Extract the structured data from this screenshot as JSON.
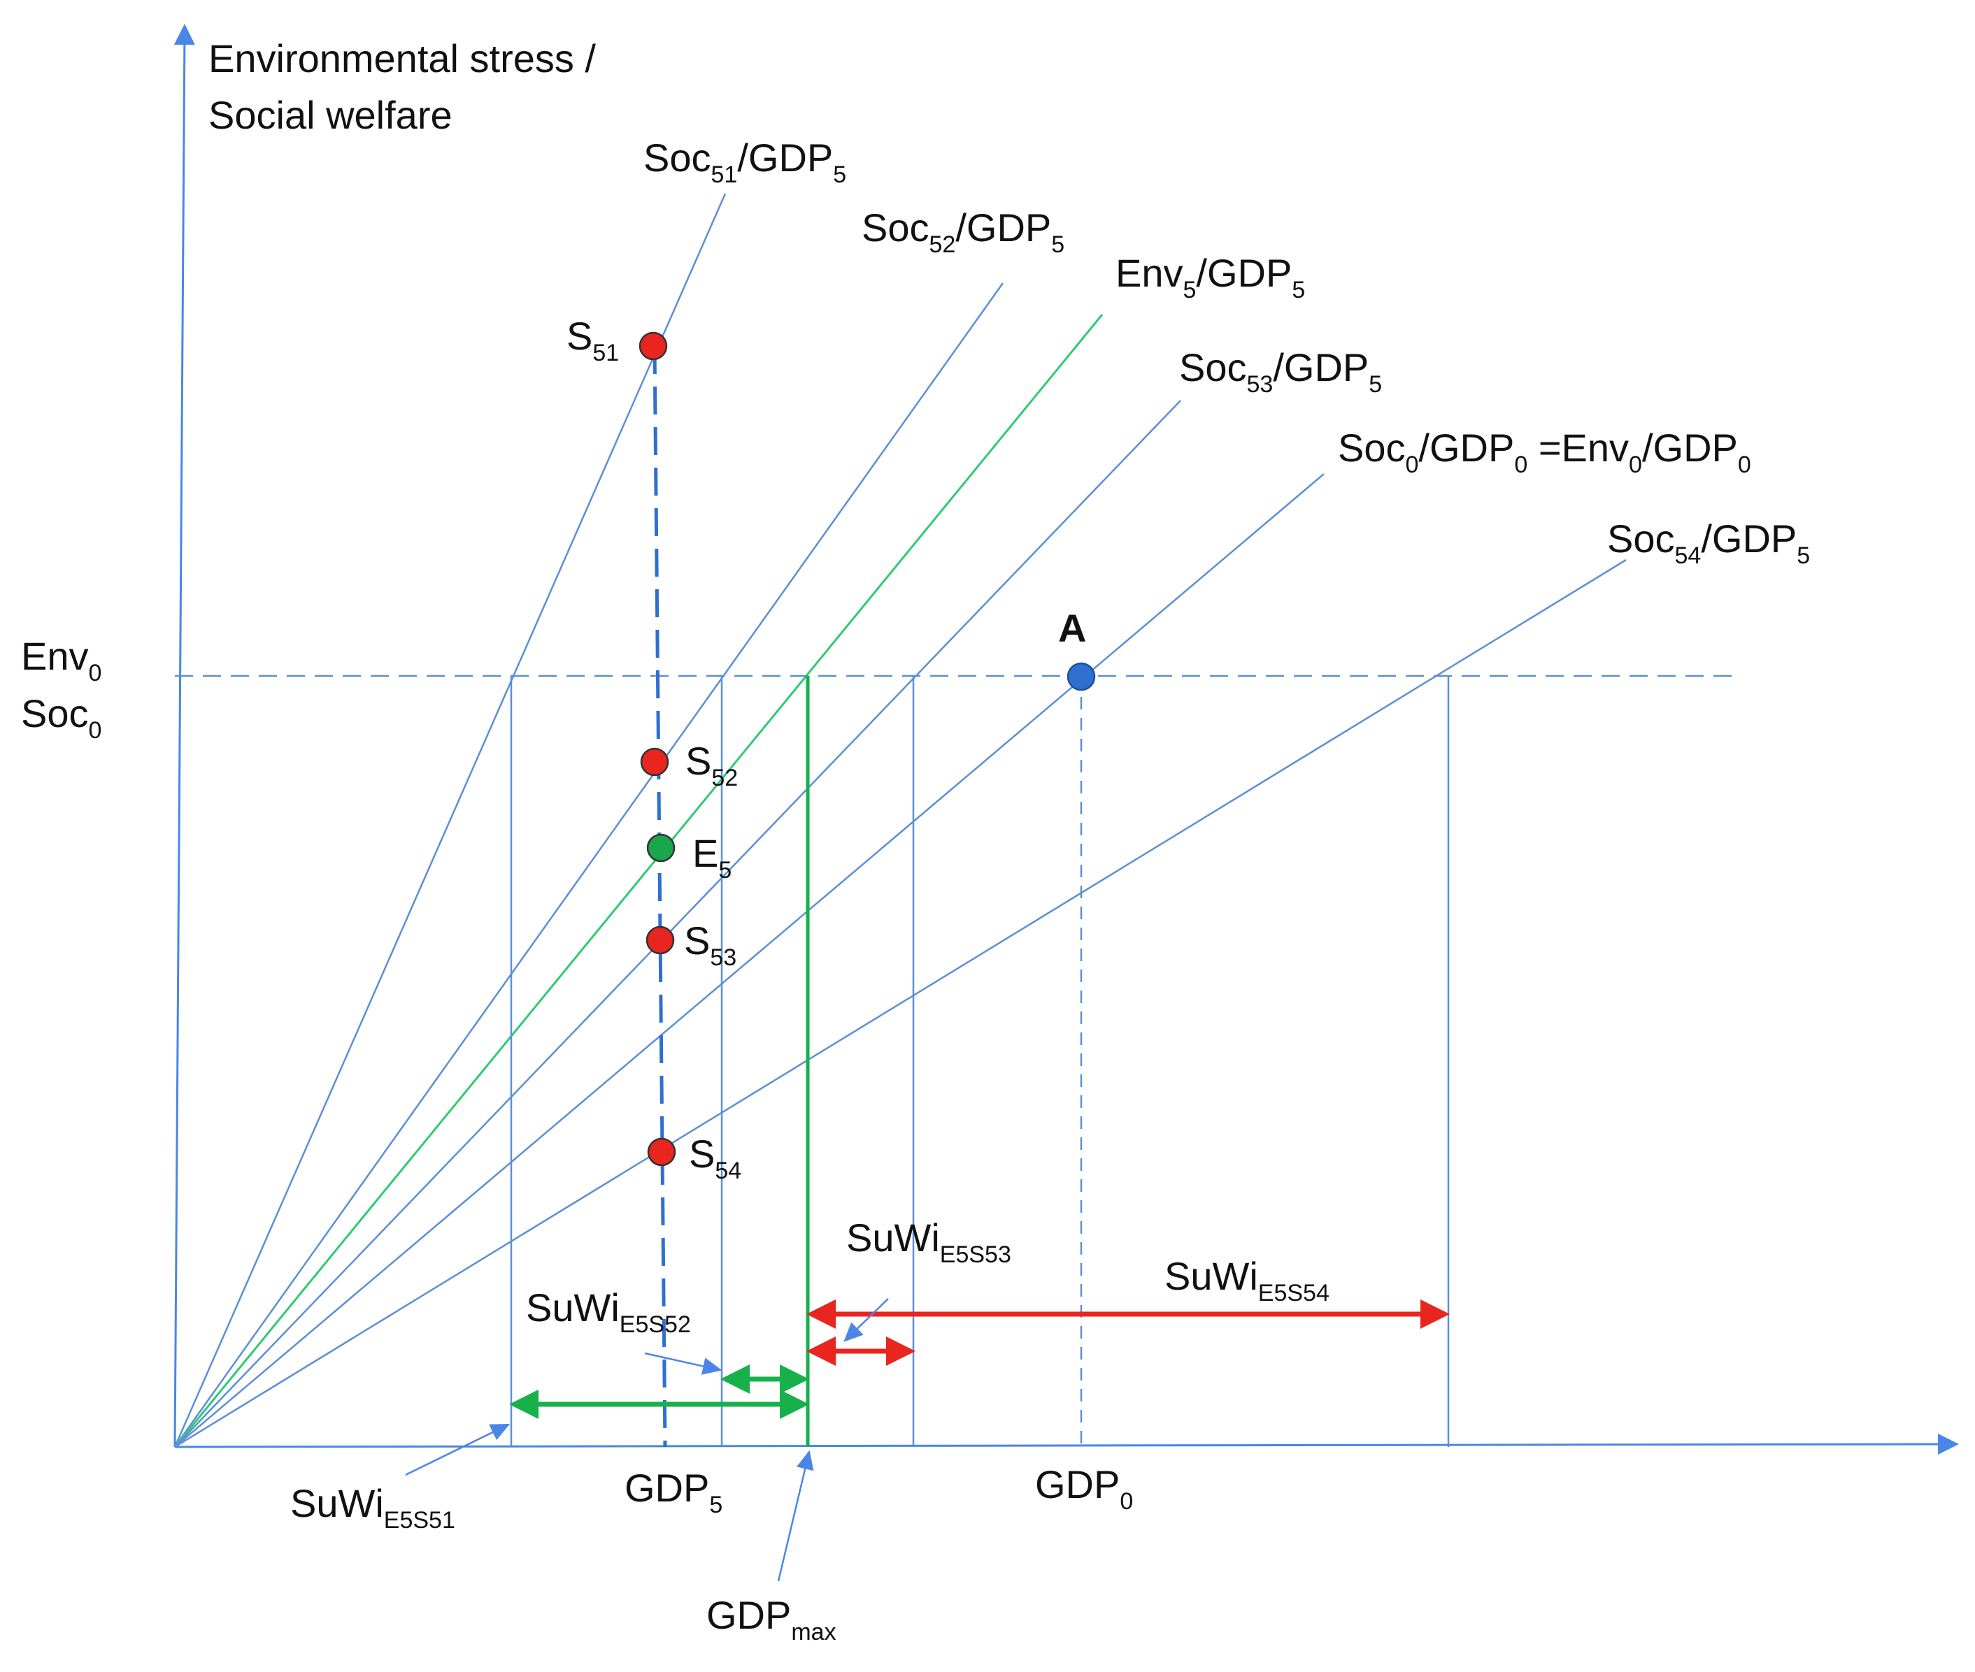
{
  "colors": {
    "axis": "#4a86e8",
    "line": "#5b8fd6",
    "env_line": "#2ecc71",
    "green_arrow": "#17b04a",
    "red_arrow": "#e8251f",
    "point_red": "#e8251f",
    "point_green": "#1aa64a",
    "point_blue": "#2f6fd0"
  },
  "labels": {
    "y_axis_line1": "Environmental stress /",
    "y_axis_line2": "Social welfare",
    "env0": {
      "main": "Env",
      "sub": "0"
    },
    "soc0": {
      "main": "Soc",
      "sub": "0"
    },
    "gdp5": {
      "main": "GDP",
      "sub": "5"
    },
    "gdp0": {
      "main": "GDP",
      "sub": "0"
    },
    "gdpmax": {
      "main": "GDP",
      "sub": "max"
    },
    "point_a": "A"
  },
  "rays": [
    {
      "id": "soc51",
      "parts": [
        [
          "Soc",
          ""
        ],
        [
          "51",
          "sub"
        ],
        [
          "/GDP",
          ""
        ],
        [
          "5",
          "sub"
        ]
      ]
    },
    {
      "id": "soc52",
      "parts": [
        [
          "Soc",
          ""
        ],
        [
          "52",
          "sub"
        ],
        [
          "/GDP",
          ""
        ],
        [
          "5",
          "sub"
        ]
      ]
    },
    {
      "id": "env5",
      "parts": [
        [
          "Env",
          ""
        ],
        [
          "5",
          "sub"
        ],
        [
          "/GDP",
          ""
        ],
        [
          "5",
          "sub"
        ]
      ]
    },
    {
      "id": "soc53",
      "parts": [
        [
          "Soc",
          ""
        ],
        [
          "53",
          "sub"
        ],
        [
          "/GDP",
          ""
        ],
        [
          "5",
          "sub"
        ]
      ]
    },
    {
      "id": "soc0",
      "parts": [
        [
          "Soc",
          ""
        ],
        [
          "0",
          "sub"
        ],
        [
          "/GDP",
          ""
        ],
        [
          "0",
          "sub"
        ],
        [
          " =Env",
          ""
        ],
        [
          "0",
          "sub"
        ],
        [
          "/GDP",
          ""
        ],
        [
          "0",
          "sub"
        ]
      ]
    },
    {
      "id": "soc54",
      "parts": [
        [
          "Soc",
          ""
        ],
        [
          "54",
          "sub"
        ],
        [
          "/GDP",
          ""
        ],
        [
          "5",
          "sub"
        ]
      ]
    }
  ],
  "points": [
    {
      "id": "S51",
      "main": "S",
      "sub": "51",
      "color": "point_red"
    },
    {
      "id": "S52",
      "main": "S",
      "sub": "52",
      "color": "point_red"
    },
    {
      "id": "E5",
      "main": "E",
      "sub": "5",
      "color": "point_green"
    },
    {
      "id": "S53",
      "main": "S",
      "sub": "53",
      "color": "point_red"
    },
    {
      "id": "S54",
      "main": "S",
      "sub": "54",
      "color": "point_red"
    }
  ],
  "suwi": [
    {
      "id": "e5s51",
      "main": "SuWi",
      "sub": "E5S51"
    },
    {
      "id": "e5s52",
      "main": "SuWi",
      "sub": "E5S52"
    },
    {
      "id": "e5s53",
      "main": "SuWi",
      "sub": "E5S53"
    },
    {
      "id": "e5s54",
      "main": "SuWi",
      "sub": "E5S54"
    }
  ]
}
